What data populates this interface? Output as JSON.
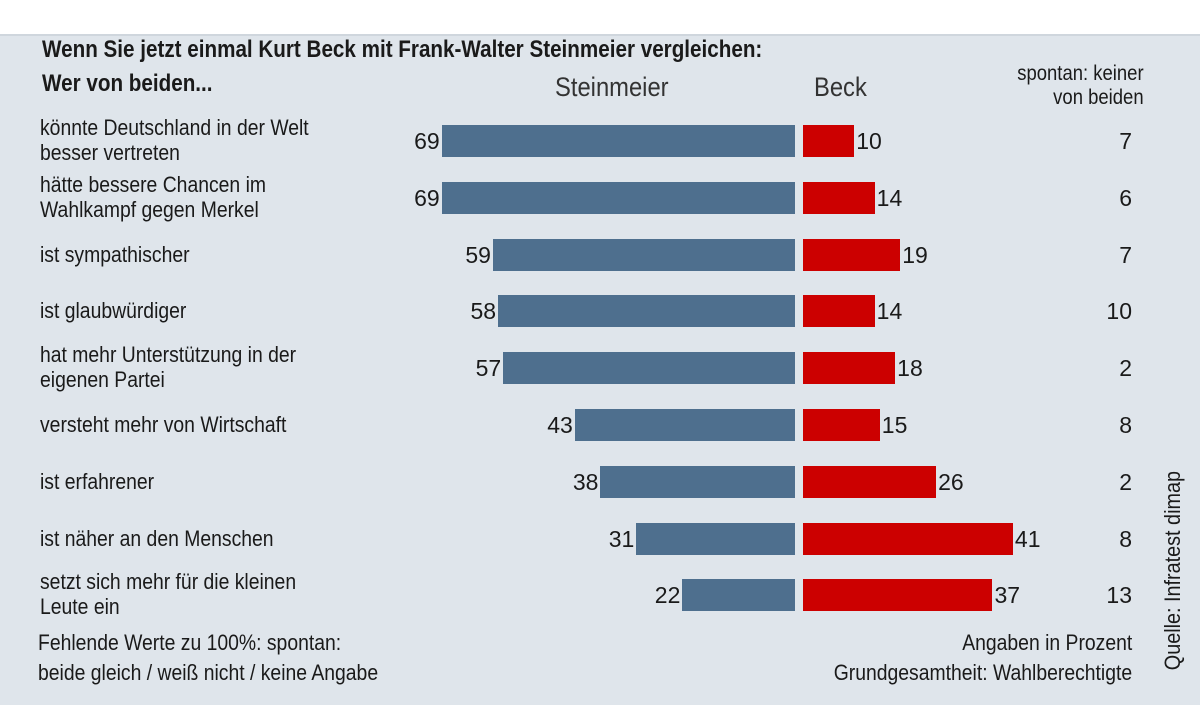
{
  "question": {
    "line1": "Wenn Sie jetzt einmal Kurt Beck mit Frank-Walter Steinmeier vergleichen:",
    "line2": "Wer  von beiden..."
  },
  "headers": {
    "steinmeier": "Steinmeier",
    "beck": "Beck",
    "none_line1": "spontan: keiner",
    "none_line2": "von beiden"
  },
  "chart_data": {
    "type": "bar",
    "orientation": "horizontal-diverging",
    "categories": [
      [
        "könnte Deutschland in der Welt",
        "besser vertreten"
      ],
      [
        "hätte bessere Chancen im",
        "Wahlkampf gegen Merkel"
      ],
      [
        "ist sympathischer"
      ],
      [
        "ist glaubwürdiger"
      ],
      [
        "hat mehr Unterstützung in der",
        "eigenen Partei"
      ],
      [
        "versteht mehr von Wirtschaft"
      ],
      [
        "ist erfahrener"
      ],
      [
        "ist näher an den Menschen"
      ],
      [
        "setzt sich mehr für die kleinen",
        "Leute ein"
      ]
    ],
    "series": [
      {
        "name": "Steinmeier",
        "color": "#4e6f8e",
        "values": [
          69,
          69,
          59,
          58,
          57,
          43,
          38,
          31,
          22
        ]
      },
      {
        "name": "Beck",
        "color": "#cc0000",
        "values": [
          10,
          14,
          19,
          14,
          18,
          15,
          26,
          41,
          37
        ]
      },
      {
        "name": "spontan: keiner von beiden",
        "values": [
          7,
          6,
          7,
          10,
          2,
          8,
          2,
          8,
          13
        ]
      }
    ],
    "unit": "Angaben in Prozent"
  },
  "footer": {
    "missing": "Fehlende Werte zu 100%: spontan:",
    "missing_line2": "beide gleich / weiß nicht / keine Angabe",
    "unit": "Angaben in Prozent",
    "population": "Grundgesamtheit: Wahlberechtigte",
    "source": "Quelle: Infratest dimap"
  }
}
